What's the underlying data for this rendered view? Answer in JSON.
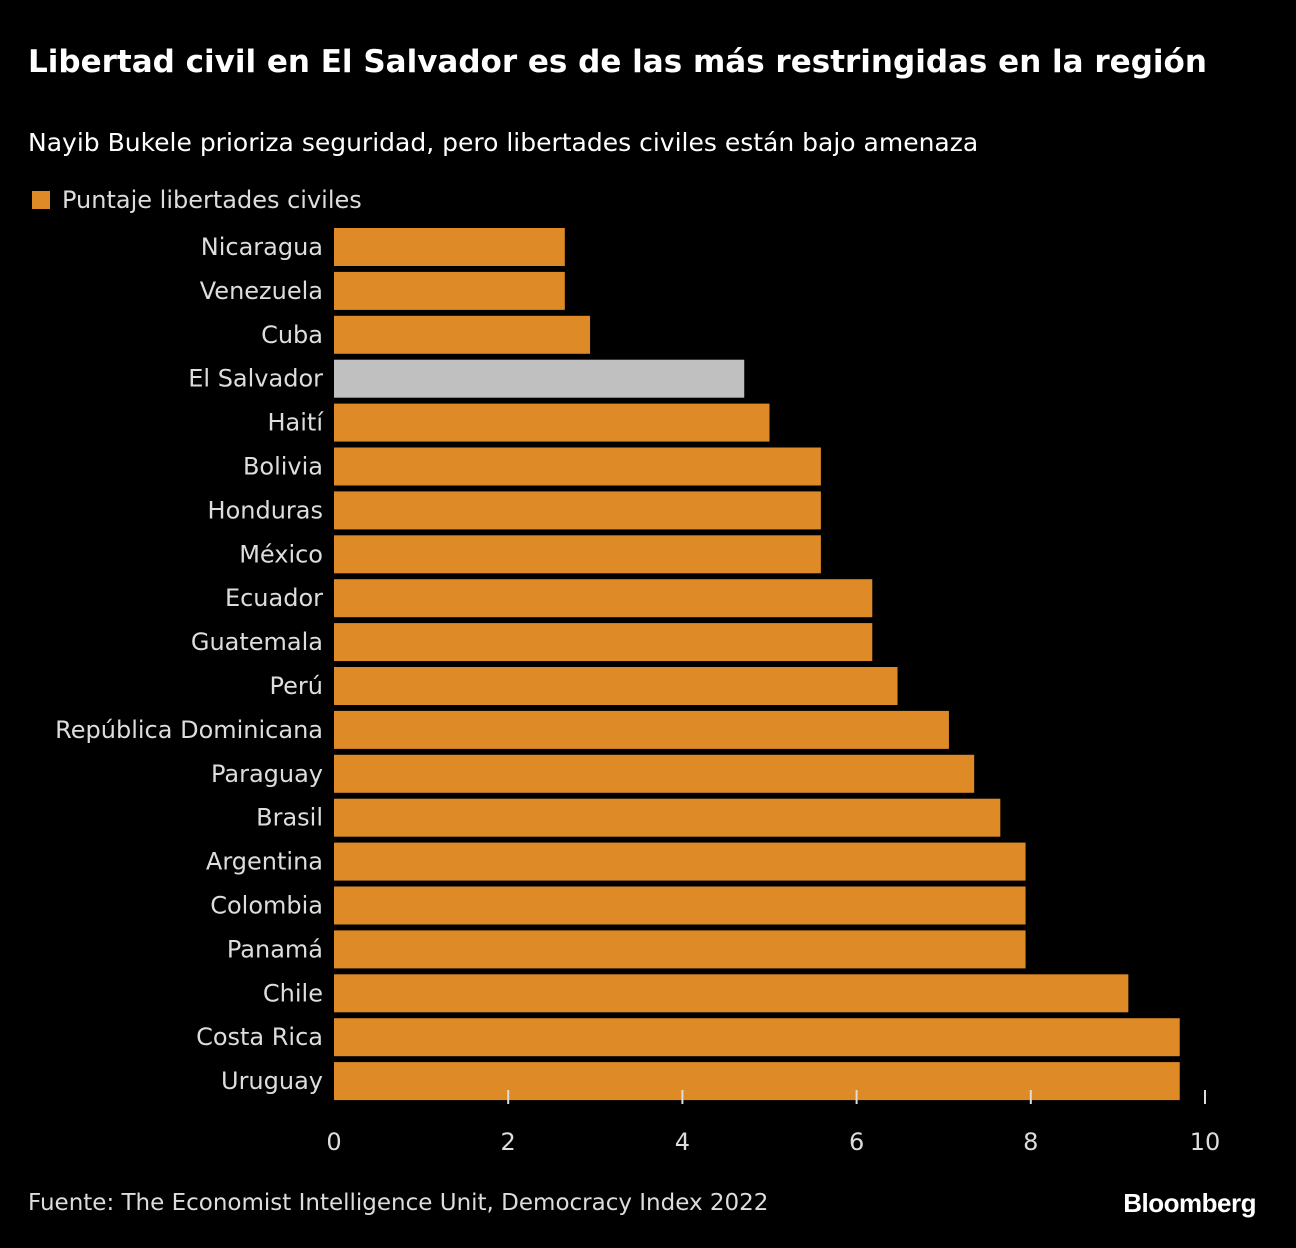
{
  "title": "Libertad civil en El Salvador es de las más restringidas en la región",
  "subtitle": "Nayib Bukele prioriza seguridad, pero libertades civiles están bajo amenaza",
  "source": "Fuente: The Economist Intelligence Unit, Democracy Index 2022",
  "logo": "Bloomberg",
  "chart_data": {
    "type": "bar",
    "orientation": "horizontal",
    "legend": [
      {
        "name": "Puntaje libertades civiles",
        "color": "#DD8A27"
      }
    ],
    "legend_placement": "top-left",
    "categories": [
      "Nicaragua",
      "Venezuela",
      "Cuba",
      "El Salvador",
      "Haití",
      "Bolivia",
      "Honduras",
      "México",
      "Ecuador",
      "Guatemala",
      "Perú",
      "República Dominicana",
      "Paraguay",
      "Brasil",
      "Argentina",
      "Colombia",
      "Panamá",
      "Chile",
      "Costa Rica",
      "Uruguay"
    ],
    "series": [
      {
        "name": "Puntaje libertades civiles",
        "values": [
          2.65,
          2.65,
          2.94,
          4.71,
          5.0,
          5.59,
          5.59,
          5.59,
          6.18,
          6.18,
          6.47,
          7.06,
          7.35,
          7.65,
          7.94,
          7.94,
          7.94,
          9.12,
          9.71,
          9.71
        ]
      }
    ],
    "highlight": {
      "category": "El Salvador",
      "color": "#C0C0C0"
    },
    "bar_color": "#DD8A27",
    "xlim": [
      0,
      10
    ],
    "xticks": [
      0,
      2,
      4,
      6,
      8,
      10
    ],
    "grid": false
  }
}
